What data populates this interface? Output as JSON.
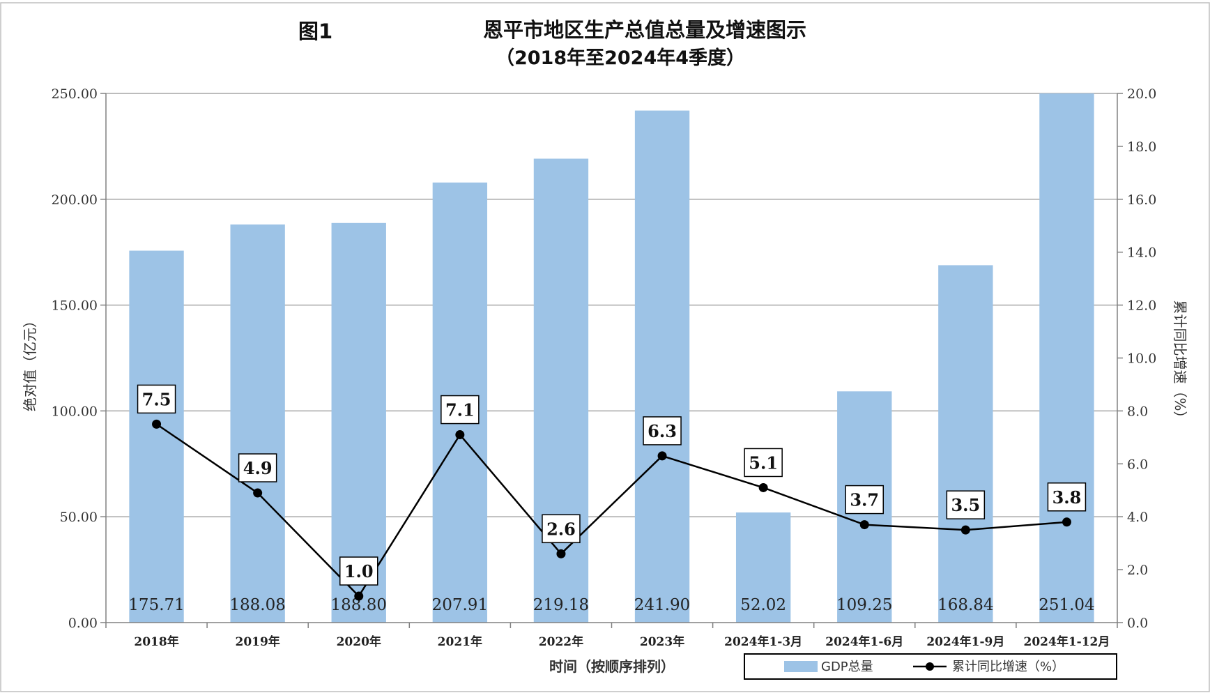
{
  "figure_label": "图1",
  "colors": {
    "bar": "#9DC3E6",
    "line": "#000000",
    "grid": "#A6A6A6",
    "axis": "#808080"
  },
  "chart_data": {
    "type": "bar",
    "title": "恩平市地区生产总值总量及增速图示",
    "subtitle": "（2018年至2024年4季度）",
    "xlabel": "时间（按顺序排列）",
    "ylabel": "绝对值（亿元）",
    "y2label": "累计同比增速（%）",
    "categories": [
      "2018年",
      "2019年",
      "2020年",
      "2021年",
      "2022年",
      "2023年",
      "2024年1-3月",
      "2024年1-6月",
      "2024年1-9月",
      "2024年1-12月"
    ],
    "ylim": [
      0,
      250
    ],
    "y2lim": [
      0,
      20
    ],
    "yticks": [
      "0.00",
      "50.00",
      "100.00",
      "150.00",
      "200.00",
      "250.00"
    ],
    "y2ticks": [
      "0.0",
      "2.0",
      "4.0",
      "6.0",
      "8.0",
      "10.0",
      "12.0",
      "14.0",
      "16.0",
      "18.0",
      "20.0"
    ],
    "grid": true,
    "legend_position": "bottom-right",
    "series": [
      {
        "name": "GDP总量",
        "type": "bar",
        "axis": "left",
        "values": [
          175.71,
          188.08,
          188.8,
          207.91,
          219.18,
          241.9,
          52.02,
          109.25,
          168.84,
          251.04
        ],
        "labels": [
          "175.71",
          "188.08",
          "188.80",
          "207.91",
          "219.18",
          "241.90",
          "52.02",
          "109.25",
          "168.84",
          "251.04"
        ]
      },
      {
        "name": "累计同比增速（%）",
        "type": "line",
        "axis": "right",
        "values": [
          7.5,
          4.9,
          1.0,
          7.1,
          2.6,
          6.3,
          5.1,
          3.7,
          3.5,
          3.8
        ],
        "labels": [
          "7.5",
          "4.9",
          "1.0",
          "7.1",
          "2.6",
          "6.3",
          "5.1",
          "3.7",
          "3.5",
          "3.8"
        ]
      }
    ]
  }
}
